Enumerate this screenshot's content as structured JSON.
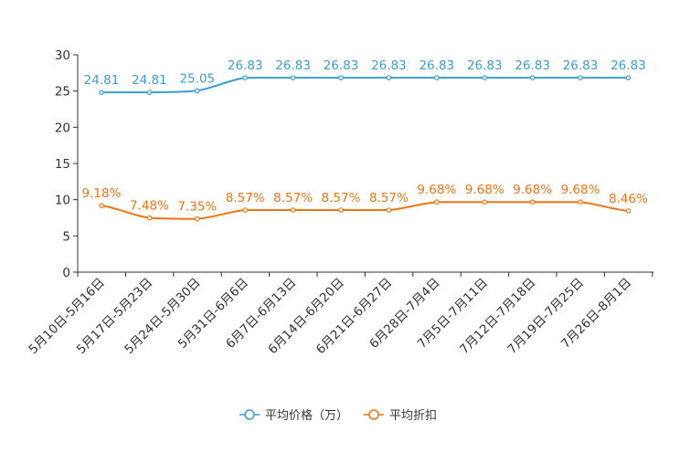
{
  "chart_data": {
    "type": "line",
    "title": "",
    "xlabel": "",
    "ylabel": "",
    "ylim": [
      0,
      30
    ],
    "yticks": [
      0,
      5,
      10,
      15,
      20,
      25,
      30
    ],
    "grid": false,
    "legend_position": "bottom-center",
    "categories": [
      "5月10日-5月16日",
      "5月17日-5月23日",
      "5月24日-5月30日",
      "5月31日-6月6日",
      "6月7日-6月13日",
      "6月14日-6月20日",
      "6月21日-6月27日",
      "6月28日-7月4日",
      "7月5日-7月11日",
      "7月12日-7月18日",
      "7月19日-7月25日",
      "7月26日-8月1日"
    ],
    "series": [
      {
        "name": "平均价格（万）",
        "color": "#3a9ed1",
        "values": [
          24.81,
          24.81,
          25.05,
          26.83,
          26.83,
          26.83,
          26.83,
          26.83,
          26.83,
          26.83,
          26.83,
          26.83
        ],
        "labels": [
          "24.81",
          "24.81",
          "25.05",
          "26.83",
          "26.83",
          "26.83",
          "26.83",
          "26.83",
          "26.83",
          "26.83",
          "26.83",
          "26.83"
        ]
      },
      {
        "name": "平均折扣",
        "color": "#f07411",
        "values": [
          9.18,
          7.48,
          7.35,
          8.57,
          8.57,
          8.57,
          8.57,
          9.68,
          9.68,
          9.68,
          9.68,
          8.46
        ],
        "labels": [
          "9.18%",
          "7.48%",
          "7.35%",
          "8.57%",
          "8.57%",
          "8.57%",
          "8.57%",
          "9.68%",
          "9.68%",
          "9.68%",
          "9.68%",
          "8.46%"
        ]
      }
    ]
  }
}
